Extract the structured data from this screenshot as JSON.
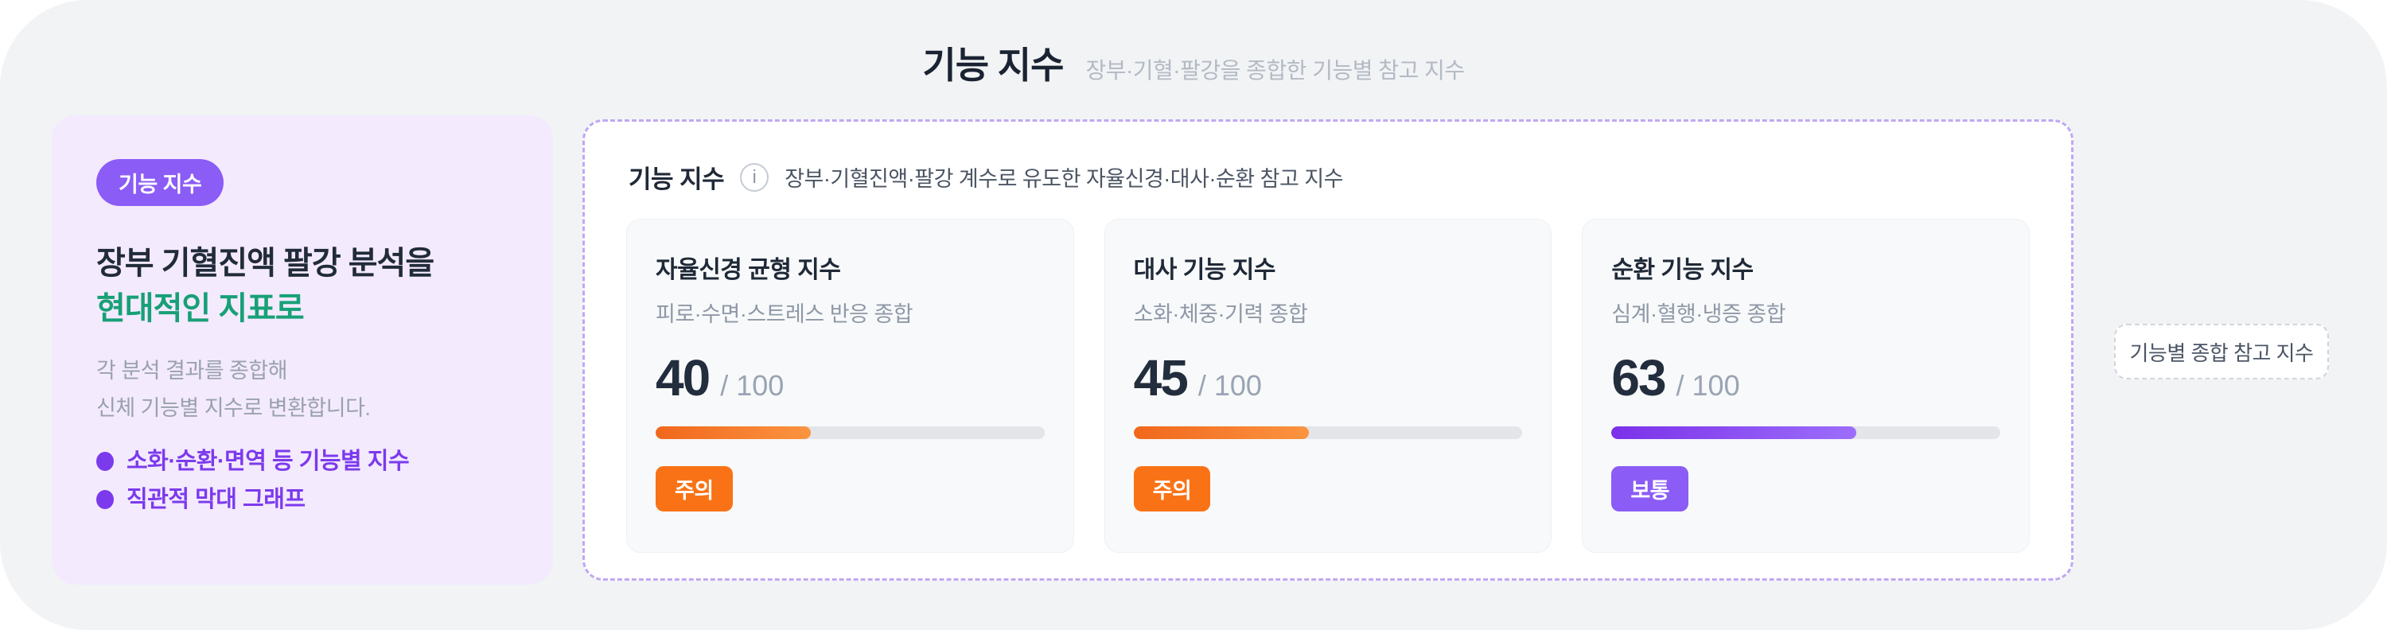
{
  "page": {
    "title": "기능 지수",
    "subtitle": "장부·기혈·팔강을 종합한 기능별 참고 지수"
  },
  "intro_card": {
    "badge": "기능 지수",
    "heading_line1": "장부 기혈진액 팔강 분석을",
    "heading_line2": "현대적인 지표로",
    "description_line1": "각 분석 결과를 종합해",
    "description_line2": "신체 기능별 지수로 변환합니다.",
    "bullets": [
      {
        "label": "소화·순환·면역 등 기능별 지수"
      },
      {
        "label": "직관적 막대 그래프"
      }
    ],
    "colors": {
      "badge_bg": "#8b5cf6",
      "accent_green": "#18a077",
      "bullet_purple": "#7c3aed",
      "card_bg": "#f3eafe"
    }
  },
  "panel": {
    "title": "기능 지수",
    "description": "장부·기혈진액·팔강 계수로 유도한 자율신경·대사·순환 참고 지수",
    "border_color": "#bfa9f3",
    "cards": [
      {
        "title": "자율신경 균형 지수",
        "subtitle": "피로·수면·스트레스 반응 종합",
        "score": "40",
        "max": "/ 100",
        "percent": 40,
        "status": "주의",
        "status_color": "#f97316",
        "bar_from": "#f1671c",
        "bar_to": "#fb9440"
      },
      {
        "title": "대사 기능 지수",
        "subtitle": "소화·체중·기력 종합",
        "score": "45",
        "max": "/ 100",
        "percent": 45,
        "status": "주의",
        "status_color": "#f97316",
        "bar_from": "#f1671c",
        "bar_to": "#fb9440"
      },
      {
        "title": "순환 기능 지수",
        "subtitle": "심계·혈행·냉증 종합",
        "score": "63",
        "max": "/ 100",
        "percent": 63,
        "status": "보통",
        "status_color": "#8b5cf6",
        "bar_from": "#7b31e9",
        "bar_to": "#9c6efb"
      }
    ]
  },
  "side_label": {
    "text": "기능별 종합 참고 지수"
  }
}
